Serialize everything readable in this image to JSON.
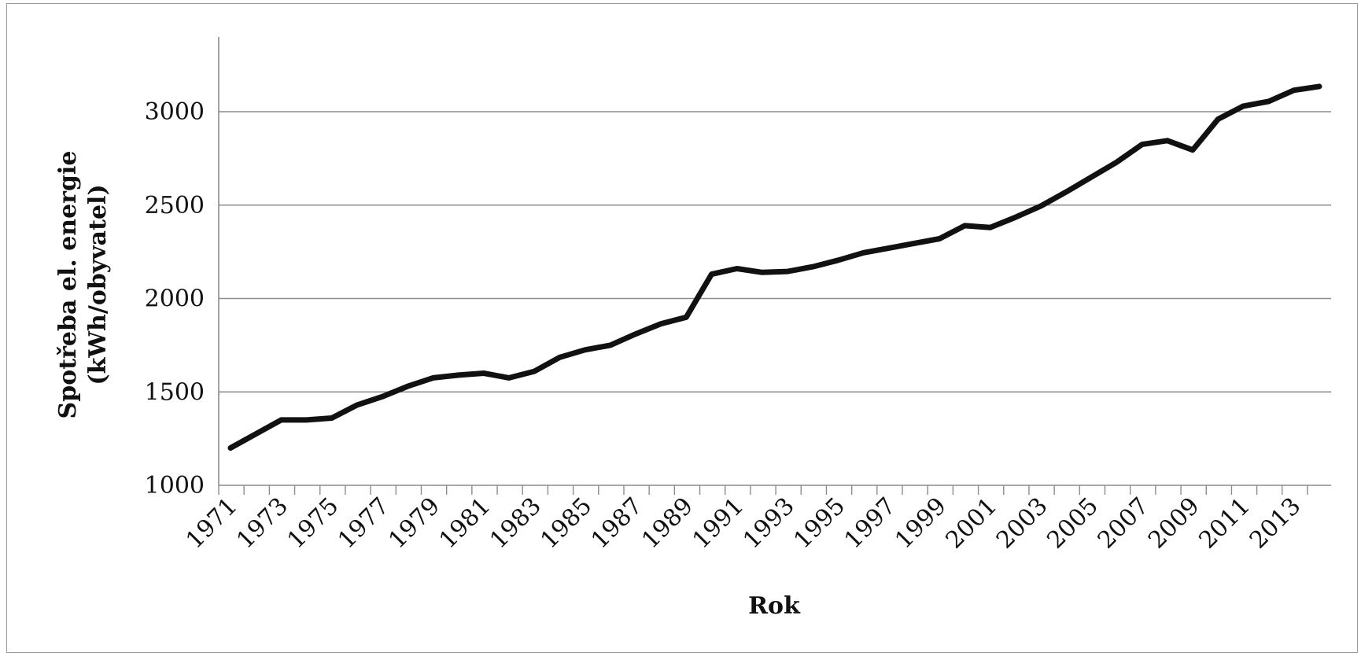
{
  "chart_data": {
    "type": "line",
    "title": "",
    "xlabel": "Rok",
    "ylabel_line1": "Spotřeba el. energie",
    "ylabel_line2": "(kWh/obyvatel)",
    "ylim": [
      1000,
      3400
    ],
    "yticks": [
      1000,
      1500,
      2000,
      2500,
      3000
    ],
    "grid": "horizontal",
    "line_color": "#111111",
    "x_tick_labels": [
      "1971",
      "1973",
      "1975",
      "1977",
      "1979",
      "1981",
      "1983",
      "1985",
      "1987",
      "1989",
      "1991",
      "1993",
      "1995",
      "1997",
      "1999",
      "2001",
      "2003",
      "2005",
      "2007",
      "2009",
      "2011",
      "2013"
    ],
    "x": [
      1971,
      1972,
      1973,
      1974,
      1975,
      1976,
      1977,
      1978,
      1979,
      1980,
      1981,
      1982,
      1983,
      1984,
      1985,
      1986,
      1987,
      1988,
      1989,
      1990,
      1991,
      1992,
      1993,
      1994,
      1995,
      1996,
      1997,
      1998,
      1999,
      2000,
      2001,
      2002,
      2003,
      2004,
      2005,
      2006,
      2007,
      2008,
      2009,
      2010,
      2011,
      2012,
      2013,
      2014
    ],
    "values": [
      1200,
      1275,
      1350,
      1350,
      1360,
      1430,
      1475,
      1530,
      1575,
      1590,
      1600,
      1575,
      1610,
      1685,
      1725,
      1750,
      1810,
      1865,
      1900,
      2130,
      2160,
      2140,
      2145,
      2170,
      2205,
      2245,
      2270,
      2295,
      2320,
      2390,
      2380,
      2435,
      2495,
      2570,
      2650,
      2730,
      2825,
      2845,
      2795,
      2960,
      3030,
      3055,
      3115,
      3135
    ]
  }
}
